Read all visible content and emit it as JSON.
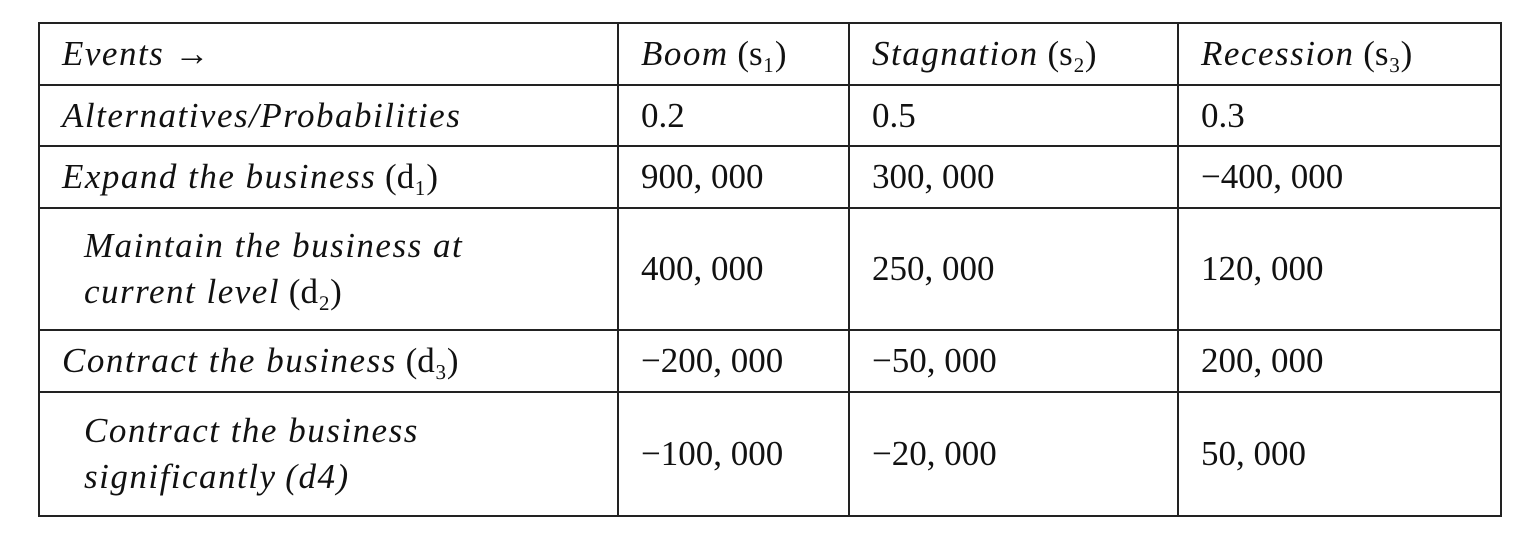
{
  "table": {
    "header": [
      {
        "name": "Events →"
      },
      {
        "name": "Boom",
        "symbol": "(s₁)"
      },
      {
        "name": "Stagnation",
        "symbol": "(s₂)"
      },
      {
        "name": "Recession",
        "symbol": "(s₃)"
      }
    ],
    "rows": [
      [
        {
          "name": "Alternatives/Probabilities"
        },
        "0.2",
        "0.5",
        "0.3"
      ],
      [
        {
          "name": "Expand the business",
          "symbol": "(d₁)"
        },
        "900, 000",
        "300, 000",
        "−400, 000"
      ],
      [
        {
          "name": "Maintain the business at current level",
          "symbol": "(d₂)"
        },
        "400, 000",
        "250, 000",
        "120, 000"
      ],
      [
        {
          "name": "Contract the business",
          "symbol": "(d₃)"
        },
        "−200, 000",
        "−50, 000",
        "200, 000"
      ],
      [
        {
          "name": "Contract the business significantly",
          "symbol": "(d4)",
          "italic_symbol": true
        },
        "−100, 000",
        "−20, 000",
        "50, 000"
      ]
    ]
  }
}
